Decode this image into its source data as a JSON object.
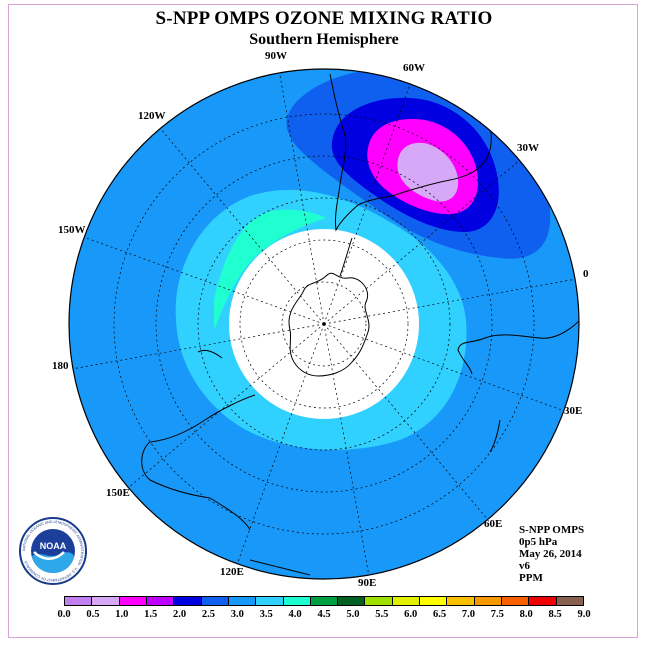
{
  "title": "S-NPP OMPS OZONE MIXING RATIO",
  "subtitle": "Southern Hemisphere",
  "longitude_labels": {
    "lon_90w": "90W",
    "lon_60w": "60W",
    "lon_30w": "30W",
    "lon_0": "0",
    "lon_30e": "30E",
    "lon_60e": "60E",
    "lon_90e": "90E",
    "lon_120e": "120E",
    "lon_150e": "150E",
    "lon_180": "180",
    "lon_150w": "150W",
    "lon_120w": "120W"
  },
  "info": {
    "instrument": "S-NPP OMPS",
    "level": "0p5 hPa",
    "date": "May 26, 2014",
    "version": "v6",
    "units": "PPM"
  },
  "logo": {
    "text": "NOAA",
    "ring_text": "NATIONAL OCEANIC AND ATMOSPHERIC ADMINISTRATION · U.S. DEPARTMENT OF COMMERCE"
  },
  "colorbar": {
    "colors": [
      "#c080f0",
      "#d8a8f8",
      "#ff00ff",
      "#c000ff",
      "#0000e0",
      "#1060f0",
      "#1898f8",
      "#30d0ff",
      "#20ffd0",
      "#00a040",
      "#006020",
      "#a0e000",
      "#e0f000",
      "#ffff00",
      "#f8c000",
      "#f89800",
      "#f86000",
      "#f00000",
      "#886050"
    ],
    "ticks": [
      "0.0",
      "0.5",
      "1.0",
      "1.5",
      "2.0",
      "2.5",
      "3.0",
      "3.5",
      "4.0",
      "4.5",
      "5.0",
      "5.5",
      "6.0",
      "6.5",
      "7.0",
      "7.5",
      "8.0",
      "8.5",
      "9.0"
    ]
  },
  "map_colors": {
    "background_field": "#1898f8",
    "field_2_5": "#1060f0",
    "field_2_0": "#0000e0",
    "field_1_0": "#ff00ff",
    "field_0_5": "#d8a8f8",
    "field_3_5": "#30d0ff",
    "field_4_0": "#20ffd0",
    "no_data": "#ffffff"
  }
}
